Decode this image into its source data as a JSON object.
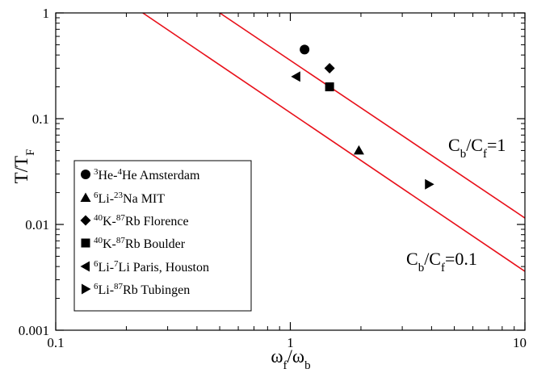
{
  "chart_data": {
    "type": "scatter",
    "x_scale": "log",
    "y_scale": "log",
    "xlim": [
      0.1,
      10
    ],
    "ylim": [
      0.001,
      1
    ],
    "x_ticks": [
      {
        "value": 0.1,
        "label": "0.1"
      },
      {
        "value": 1,
        "label": "1"
      },
      {
        "value": 10,
        "label": "10"
      }
    ],
    "y_ticks": [
      {
        "value": 0.001,
        "label": "0.001"
      },
      {
        "value": 0.01,
        "label": "0.01"
      },
      {
        "value": 0.1,
        "label": "0.1"
      },
      {
        "value": 1,
        "label": "1"
      }
    ],
    "xlabel": {
      "main": "ω",
      "sub1": "f",
      "mid": "/ω",
      "sub2": "b"
    },
    "ylabel": {
      "main": "T/T",
      "sub": "F"
    },
    "grid": false,
    "legend_position": "bottom-left",
    "series": [
      {
        "id": "he",
        "marker": "circle",
        "points": [
          [
            1.15,
            0.45
          ]
        ],
        "legend": {
          "sup1": "3",
          "a": "He-",
          "sup2": "4",
          "b": "He Amsterdam"
        }
      },
      {
        "id": "li_na",
        "marker": "triangle-up",
        "points": [
          [
            1.96,
            0.05
          ]
        ],
        "legend": {
          "sup1": "6",
          "a": "Li-",
          "sup2": "23",
          "b": "Na MIT"
        }
      },
      {
        "id": "k_rb_florence",
        "marker": "diamond",
        "points": [
          [
            1.47,
            0.3
          ]
        ],
        "legend": {
          "sup1": "40",
          "a": "K-",
          "sup2": "87",
          "b": "Rb Florence"
        }
      },
      {
        "id": "k_rb_boulder",
        "marker": "square",
        "points": [
          [
            1.47,
            0.2
          ]
        ],
        "legend": {
          "sup1": "40",
          "a": "K-",
          "sup2": "87",
          "b": "Rb Boulder"
        }
      },
      {
        "id": "li_li",
        "marker": "triangle-left",
        "points": [
          [
            1.06,
            0.25
          ]
        ],
        "legend": {
          "sup1": "6",
          "a": "Li-",
          "sup2": "7",
          "b": "Li Paris, Houston"
        }
      },
      {
        "id": "li_rb",
        "marker": "triangle-right",
        "points": [
          [
            3.9,
            0.024
          ]
        ],
        "legend": {
          "sup1": "6",
          "a": "Li-",
          "sup2": "87",
          "b": "Rb Tubingen"
        }
      }
    ],
    "lines": [
      {
        "id": "cb1",
        "color": "#e8101a",
        "points": [
          [
            0.5,
            1
          ],
          [
            10,
            0.0115
          ]
        ],
        "label": {
          "main": "C",
          "sub1": "b",
          "mid": "/C",
          "sub2": "f",
          "tail": "=1"
        }
      },
      {
        "id": "cb01",
        "color": "#e8101a",
        "points": [
          [
            0.235,
            1
          ],
          [
            10,
            0.0036
          ]
        ],
        "label": {
          "main": "C",
          "sub1": "b",
          "mid": "/C",
          "sub2": "f",
          "tail": "=0.1"
        }
      }
    ]
  }
}
